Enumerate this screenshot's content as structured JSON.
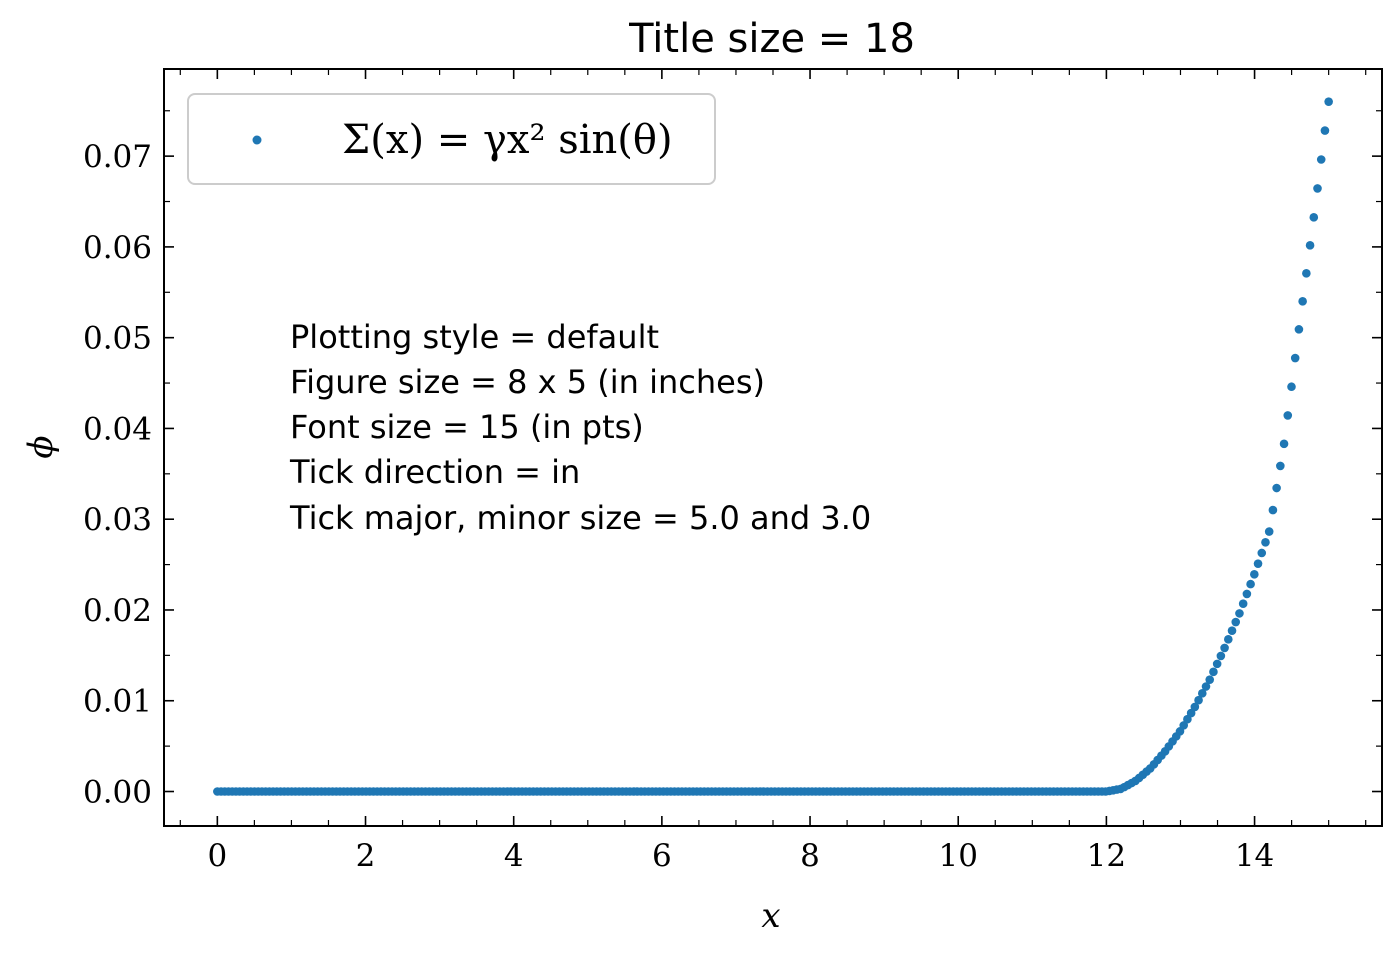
{
  "chart_data": {
    "type": "scatter",
    "title": "Title size = 18",
    "xlabel": "x",
    "ylabel": "ϕ",
    "xlim": [
      -0.72,
      15.72
    ],
    "ylim": [
      -0.0038,
      0.0796
    ],
    "xticks": [
      0,
      2,
      4,
      6,
      8,
      10,
      12,
      14
    ],
    "xtick_labels": [
      "0",
      "2",
      "4",
      "6",
      "8",
      "10",
      "12",
      "14"
    ],
    "xminor_step": 0.5,
    "yticks": [
      0.0,
      0.01,
      0.02,
      0.03,
      0.04,
      0.05,
      0.06,
      0.07
    ],
    "ytick_labels": [
      "0.00",
      "0.01",
      "0.02",
      "0.03",
      "0.04",
      "0.05",
      "0.06",
      "0.07"
    ],
    "yminor_step": 0.005,
    "tick_direction": "in",
    "grid": false,
    "legend_position": "upper-left",
    "series": [
      {
        "name": "Σ(x) = γx² sin(θ)",
        "color": "#1f77b4",
        "x_start": 0,
        "x_end": 15,
        "n_points": 300,
        "x_knots": [
          0,
          12,
          12.2,
          12.4,
          12.6,
          12.8,
          13.0,
          13.2,
          13.4,
          13.6,
          13.8,
          14.0,
          14.2,
          14.4,
          14.6,
          14.8,
          15.0
        ],
        "y_knots": [
          0.0,
          0.0,
          0.0003,
          0.0012,
          0.0026,
          0.0045,
          0.0067,
          0.0094,
          0.0124,
          0.0159,
          0.0197,
          0.024,
          0.0287,
          0.0384,
          0.051,
          0.0633,
          0.076
        ]
      }
    ],
    "annotations": [
      "Plotting style = default",
      "Figure size = 8 x 5 (in inches)",
      "Font size = 15 (in pts)",
      "Tick direction = in",
      "Tick major, minor size = 5.0 and 3.0"
    ]
  }
}
